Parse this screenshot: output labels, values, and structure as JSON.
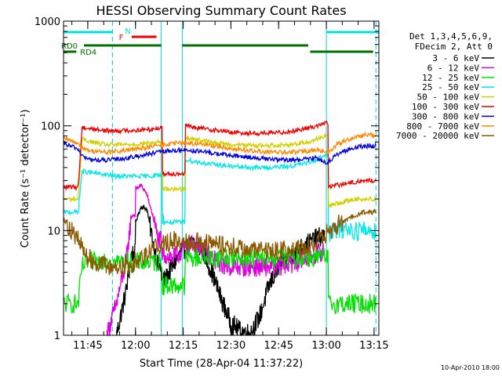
{
  "chart_data": {
    "type": "line",
    "title": "HESSI Observing Summary Count Rates",
    "xlabel": "Start Time (28-Apr-04 11:37:22)",
    "ylabel": "Count Rate (s⁻¹ detector⁻¹)",
    "y_scale": "log",
    "ylim": [
      1,
      1000
    ],
    "yticks": [
      "1",
      "10",
      "100",
      "1000"
    ],
    "xlim": [
      11.623,
      13.275
    ],
    "xticks": [
      "11:45",
      "12:00",
      "12:15",
      "12:30",
      "12:45",
      "13:00",
      "13:15"
    ],
    "grid": false,
    "legend_placement": "right",
    "legend_header": [
      "Det 1,3,4,5,6,9,",
      "FDecim 2, Att 0"
    ],
    "timestamp": "10-Apr-2010 18:00",
    "flags": [
      {
        "label": "N",
        "color": "#00e0e0",
        "segments": [
          [
            11.623,
            11.88
          ],
          [
            13.0,
            13.275
          ]
        ]
      },
      {
        "label": "F",
        "color": "#ee0000",
        "segments": [
          [
            11.98,
            12.11
          ]
        ]
      },
      {
        "label": "RD0",
        "color": "#007000",
        "segments": [
          [
            11.73,
            12.135
          ],
          [
            12.245,
            12.905
          ]
        ]
      },
      {
        "label": "RD4",
        "color": "#007000",
        "segments": [
          [
            11.623,
            11.69
          ],
          [
            12.915,
            13.245
          ]
        ]
      }
    ],
    "night_boundaries": [
      11.623,
      12.135,
      12.245,
      13.0
    ],
    "saa_boundaries": [
      11.88,
      13.26
    ],
    "series": [
      {
        "name": "3 - 6 keV",
        "color": "#000000",
        "x": [
          11.9,
          11.95,
          11.98,
          12.0,
          12.03,
          12.06,
          12.09,
          12.12,
          12.135,
          12.16,
          12.2,
          12.25,
          12.3,
          12.35,
          12.4,
          12.45,
          12.5,
          12.55,
          12.6,
          12.65,
          12.7,
          12.75,
          12.8,
          12.85,
          12.9,
          12.95,
          12.99
        ],
        "y": [
          1.0,
          2.6,
          6.0,
          12.0,
          17.0,
          16.0,
          8.0,
          4.5,
          3.2,
          3.5,
          4.8,
          6.5,
          7.5,
          6.5,
          4.0,
          2.2,
          1.3,
          1.1,
          1.05,
          1.5,
          3.0,
          4.5,
          5.5,
          6.5,
          7.5,
          8.5,
          9.0
        ]
      },
      {
        "name": "6 - 12 keV",
        "color": "#e000e0",
        "x": [
          11.85,
          11.9,
          11.95,
          11.98,
          12.0,
          12.03,
          12.06,
          12.09,
          12.12,
          12.135,
          12.2,
          12.25,
          12.3,
          12.35,
          12.4,
          12.45,
          12.5,
          12.55,
          12.6,
          12.65,
          12.7,
          12.75,
          12.8,
          12.85,
          12.9,
          12.95,
          12.99
        ],
        "y": [
          1.0,
          2.0,
          5.0,
          14.0,
          25.0,
          27.0,
          22.0,
          14.0,
          8.0,
          6.0,
          5.5,
          6.5,
          7.5,
          7.0,
          5.5,
          4.8,
          4.5,
          4.5,
          4.5,
          4.5,
          4.5,
          4.5,
          4.8,
          5.0,
          5.5,
          6.0,
          6.5
        ]
      },
      {
        "name": "12 - 25 keV",
        "color": "#00e000",
        "x": [
          11.623,
          11.65,
          11.7,
          11.72,
          11.75,
          11.8,
          11.85,
          11.88,
          11.95,
          12.0,
          12.05,
          12.1,
          12.13,
          12.14,
          12.18,
          12.22,
          12.24,
          12.26,
          12.3,
          12.4,
          12.5,
          12.6,
          12.7,
          12.8,
          12.9,
          12.95,
          12.99,
          13.01,
          13.1,
          13.2,
          13.26
        ],
        "y": [
          2.0,
          2.0,
          2.0,
          4.5,
          5.0,
          5.0,
          5.5,
          5.0,
          5.0,
          5.0,
          5.0,
          5.0,
          5.0,
          3.0,
          3.0,
          3.0,
          3.0,
          5.5,
          5.5,
          5.5,
          5.5,
          5.5,
          5.5,
          5.5,
          5.5,
          5.5,
          5.5,
          2.0,
          2.0,
          2.0,
          2.0
        ]
      },
      {
        "name": "25 - 50 keV",
        "color": "#00e8e8",
        "x": [
          11.623,
          11.7,
          11.72,
          11.75,
          11.8,
          11.85,
          11.9,
          11.95,
          12.0,
          12.05,
          12.1,
          12.13,
          12.14,
          12.18,
          12.22,
          12.24,
          12.26,
          12.3,
          12.4,
          12.5,
          12.6,
          12.7,
          12.8,
          12.9,
          12.95,
          12.99,
          13.01,
          13.05,
          13.1,
          13.15,
          13.2,
          13.26
        ],
        "y": [
          15.0,
          15.0,
          37.0,
          36.0,
          35.0,
          34.0,
          33.0,
          33.0,
          33.0,
          33.0,
          33.5,
          34.0,
          12.0,
          12.0,
          12.0,
          12.0,
          48.0,
          46.0,
          43.0,
          41.0,
          40.0,
          40.0,
          41.0,
          44.0,
          48.0,
          52.0,
          9.5,
          10.0,
          10.5,
          10.0,
          10.0,
          10.0
        ]
      },
      {
        "name": "50 - 100 keV",
        "color": "#d0d000",
        "x": [
          11.623,
          11.7,
          11.72,
          11.75,
          11.8,
          11.85,
          11.9,
          11.95,
          12.0,
          12.05,
          12.1,
          12.13,
          12.14,
          12.18,
          12.22,
          12.24,
          12.26,
          12.3,
          12.4,
          12.5,
          12.6,
          12.7,
          12.8,
          12.9,
          12.95,
          12.99,
          13.01,
          13.05,
          13.1,
          13.15,
          13.2,
          13.26
        ],
        "y": [
          20.0,
          20.0,
          75.0,
          72.0,
          68.0,
          66.0,
          66.0,
          66.0,
          67.0,
          68.0,
          69.0,
          70.0,
          25.0,
          25.0,
          25.0,
          25.0,
          78.0,
          75.0,
          70.0,
          66.0,
          65.0,
          65.0,
          66.0,
          70.0,
          75.0,
          80.0,
          17.0,
          18.0,
          19.0,
          20.0,
          20.0,
          20.0
        ]
      },
      {
        "name": "100 - 300 keV",
        "color": "#ee0000",
        "x": [
          11.623,
          11.7,
          11.72,
          11.75,
          11.8,
          11.85,
          11.9,
          11.95,
          12.0,
          12.05,
          12.1,
          12.13,
          12.14,
          12.18,
          12.22,
          12.24,
          12.26,
          12.3,
          12.4,
          12.5,
          12.6,
          12.7,
          12.8,
          12.9,
          12.95,
          12.99,
          13.01,
          13.05,
          13.1,
          13.15,
          13.2,
          13.26
        ],
        "y": [
          26.0,
          26.0,
          97.0,
          95.0,
          92.0,
          90.0,
          90.0,
          90.0,
          91.0,
          92.0,
          94.0,
          96.0,
          35.0,
          35.0,
          35.0,
          35.0,
          100.0,
          97.0,
          92.0,
          87.0,
          85.0,
          85.0,
          88.0,
          95.0,
          100.0,
          106.0,
          26.0,
          27.0,
          28.0,
          29.0,
          30.0,
          30.0
        ]
      },
      {
        "name": "300 - 800 keV",
        "color": "#0000dd",
        "x": [
          11.623,
          11.65,
          11.7,
          11.72,
          11.75,
          11.8,
          11.85,
          11.9,
          11.95,
          12.0,
          12.05,
          12.1,
          12.15,
          12.2,
          12.25,
          12.3,
          12.4,
          12.5,
          12.6,
          12.7,
          12.8,
          12.9,
          12.95,
          13.0,
          13.05,
          13.1,
          13.15,
          13.2,
          13.26
        ],
        "y": [
          68.0,
          65.0,
          60.0,
          52.0,
          48.0,
          47.0,
          47.0,
          48.0,
          49.0,
          51.0,
          53.0,
          55.0,
          57.0,
          58.0,
          59.0,
          58.0,
          55.0,
          52.0,
          50.0,
          48.0,
          47.0,
          48.0,
          50.0,
          44.0,
          52.0,
          58.0,
          62.0,
          64.0,
          64.0
        ]
      },
      {
        "name": "800 - 7000 keV",
        "color": "#ff8800",
        "x": [
          11.623,
          11.65,
          11.7,
          11.72,
          11.75,
          11.8,
          11.85,
          11.9,
          11.95,
          12.0,
          12.05,
          12.1,
          12.15,
          12.2,
          12.25,
          12.3,
          12.4,
          12.5,
          12.6,
          12.7,
          12.8,
          12.9,
          12.95,
          13.0,
          13.05,
          13.1,
          13.15,
          13.2,
          13.26
        ],
        "y": [
          76.0,
          73.0,
          68.0,
          63.0,
          58.0,
          57.0,
          56.0,
          57.0,
          58.0,
          60.0,
          62.0,
          64.0,
          66.0,
          68.0,
          69.0,
          68.0,
          65.0,
          61.0,
          58.0,
          56.0,
          56.0,
          57.0,
          59.0,
          55.0,
          65.0,
          72.0,
          78.0,
          82.0,
          82.0
        ]
      },
      {
        "name": "7000 - 20000 keV",
        "color": "#8b5a00",
        "x": [
          11.623,
          11.65,
          11.7,
          11.75,
          11.8,
          11.85,
          11.9,
          11.95,
          12.0,
          12.05,
          12.1,
          12.15,
          12.2,
          12.25,
          12.3,
          12.4,
          12.5,
          12.6,
          12.7,
          12.8,
          12.9,
          12.95,
          12.99,
          13.02,
          13.05,
          13.1,
          13.15,
          13.2,
          13.26
        ],
        "y": [
          13.0,
          11.0,
          8.0,
          5.5,
          5.0,
          4.5,
          4.5,
          4.5,
          5.0,
          6.0,
          7.0,
          7.5,
          8.0,
          8.0,
          8.0,
          7.5,
          7.0,
          6.5,
          6.5,
          6.5,
          7.0,
          7.5,
          9.0,
          10.0,
          11.0,
          12.5,
          14.0,
          15.0,
          15.0
        ]
      }
    ]
  }
}
